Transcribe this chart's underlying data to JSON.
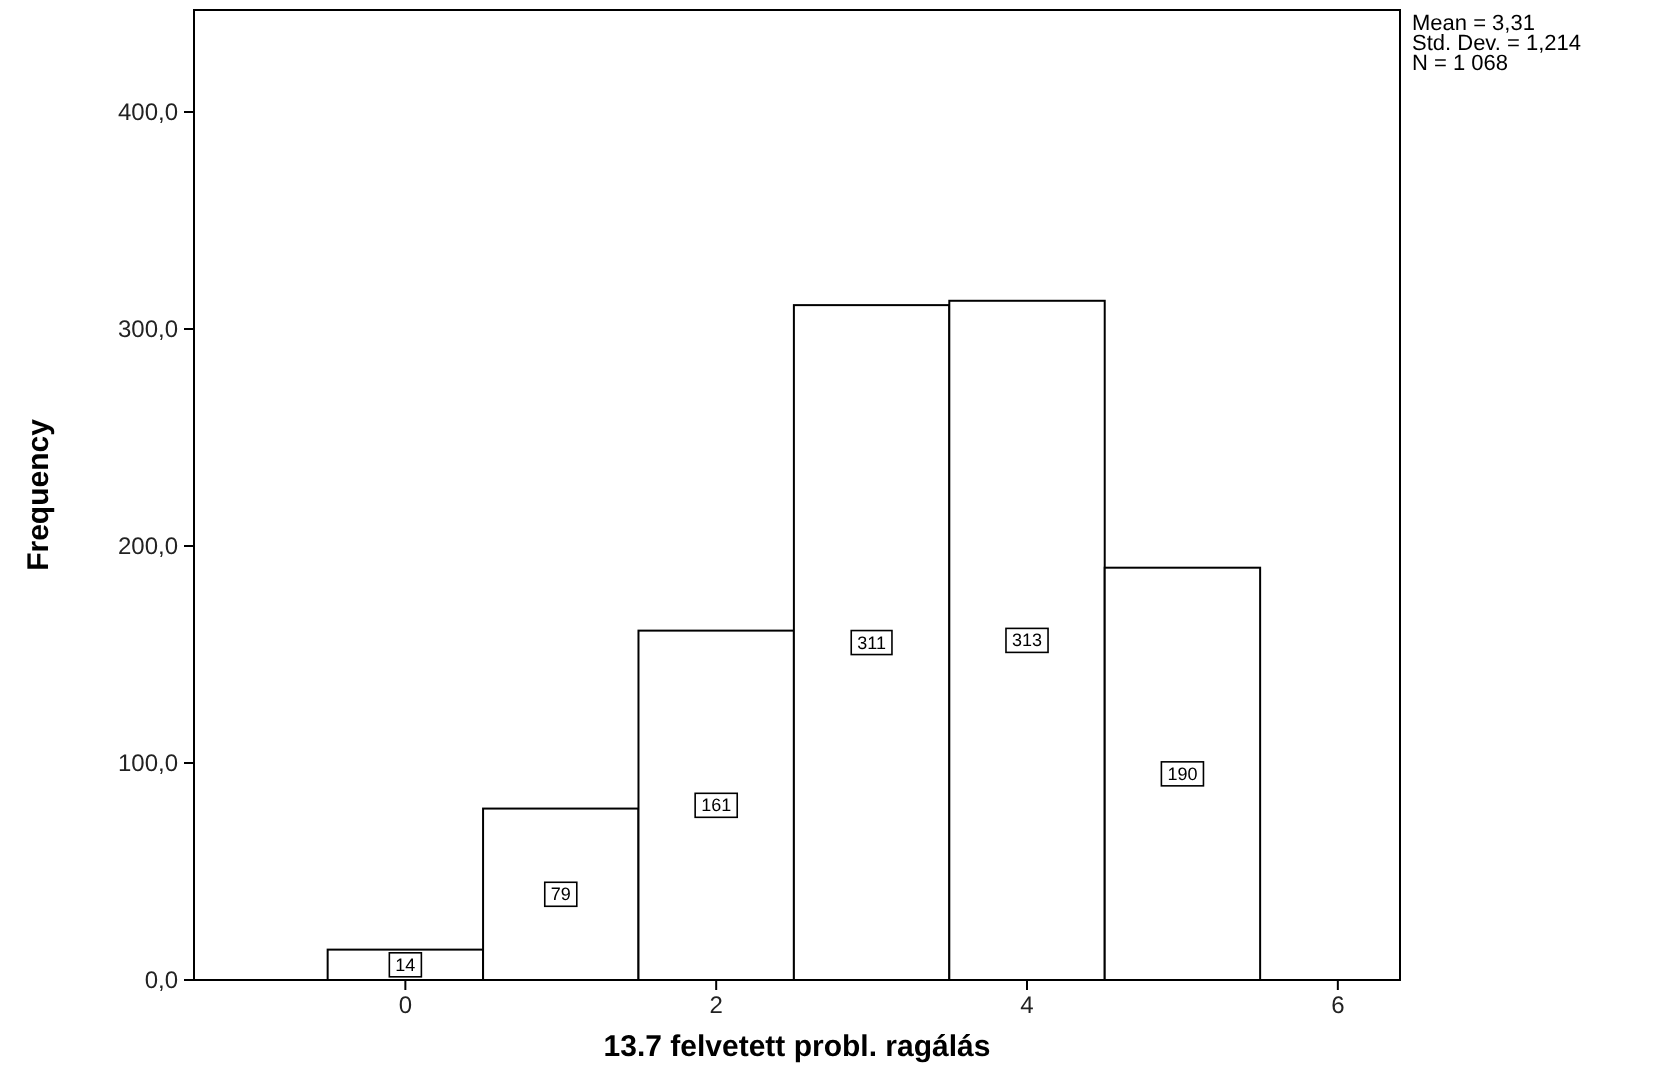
{
  "chart_data": {
    "type": "histogram",
    "xlabel": "13.7 felvetett probl. ragálás",
    "ylabel": "Frequency",
    "bins": [
      -0.5,
      0.5,
      1.5,
      2.5,
      3.5,
      4.5,
      5.5
    ],
    "values": [
      14,
      79,
      161,
      311,
      313,
      190
    ],
    "color": "#ffffff",
    "data_labels": true,
    "xlim": [
      -1.36,
      6.4
    ],
    "xticks": [
      0,
      2,
      4,
      6
    ],
    "ylim": [
      0,
      447
    ],
    "yticks": [
      {
        "value": 0,
        "label": "0,0"
      },
      {
        "value": 100,
        "label": "100,0"
      },
      {
        "value": 200,
        "label": "200,0"
      },
      {
        "value": 300,
        "label": "300,0"
      },
      {
        "value": 400,
        "label": "400,0"
      }
    ],
    "grid": false,
    "annotations": [
      "Mean = 3,31",
      "Std. Dev. = 1,214",
      "N = 1 068"
    ]
  }
}
